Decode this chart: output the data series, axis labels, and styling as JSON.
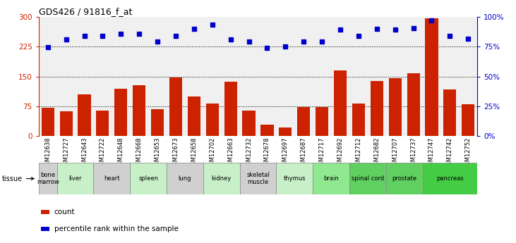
{
  "title": "GDS426 / 91816_f_at",
  "gsm_labels": [
    "GSM12638",
    "GSM12727",
    "GSM12643",
    "GSM12722",
    "GSM12648",
    "GSM12668",
    "GSM12653",
    "GSM12673",
    "GSM12658",
    "GSM12702",
    "GSM12663",
    "GSM12732",
    "GSM12678",
    "GSM12697",
    "GSM12687",
    "GSM12717",
    "GSM12692",
    "GSM12712",
    "GSM12682",
    "GSM12707",
    "GSM12737",
    "GSM12747",
    "GSM12742",
    "GSM12752"
  ],
  "bar_values": [
    72,
    63,
    105,
    65,
    120,
    128,
    68,
    148,
    100,
    82,
    137,
    65,
    28,
    22,
    73,
    73,
    165,
    82,
    138,
    145,
    158,
    296,
    118,
    80
  ],
  "dot_values": [
    74.7,
    81.3,
    84.0,
    84.0,
    86.0,
    86.0,
    79.3,
    84.0,
    90.0,
    93.3,
    81.3,
    79.3,
    74.0,
    75.0,
    79.3,
    79.3,
    89.3,
    84.0,
    90.0,
    89.3,
    90.7,
    97.3,
    84.0,
    82.0
  ],
  "tissues": [
    {
      "label": "bone\nmarrow",
      "start": 0,
      "end": 1,
      "color": "#d0d0d0"
    },
    {
      "label": "liver",
      "start": 1,
      "end": 3,
      "color": "#c8f0c8"
    },
    {
      "label": "heart",
      "start": 3,
      "end": 5,
      "color": "#d0d0d0"
    },
    {
      "label": "spleen",
      "start": 5,
      "end": 7,
      "color": "#c8f0c8"
    },
    {
      "label": "lung",
      "start": 7,
      "end": 9,
      "color": "#d0d0d0"
    },
    {
      "label": "kidney",
      "start": 9,
      "end": 11,
      "color": "#c8f0c8"
    },
    {
      "label": "skeletal\nmuscle",
      "start": 11,
      "end": 13,
      "color": "#d0d0d0"
    },
    {
      "label": "thymus",
      "start": 13,
      "end": 15,
      "color": "#c8f0c8"
    },
    {
      "label": "brain",
      "start": 15,
      "end": 17,
      "color": "#90e890"
    },
    {
      "label": "spinal cord",
      "start": 17,
      "end": 19,
      "color": "#60d060"
    },
    {
      "label": "prostate",
      "start": 19,
      "end": 21,
      "color": "#60d060"
    },
    {
      "label": "pancreas",
      "start": 21,
      "end": 24,
      "color": "#44cc44"
    }
  ],
  "ylim_left": [
    0,
    300
  ],
  "ylim_right": [
    0,
    100
  ],
  "yticks_left": [
    0,
    75,
    150,
    225,
    300
  ],
  "yticks_right": [
    0,
    25,
    50,
    75,
    100
  ],
  "bar_color": "#cc2200",
  "dot_color": "#0000cc",
  "hline_color": "#000000",
  "hline_positions": [
    75,
    150,
    225
  ],
  "bg_color": "#f0f0f0"
}
